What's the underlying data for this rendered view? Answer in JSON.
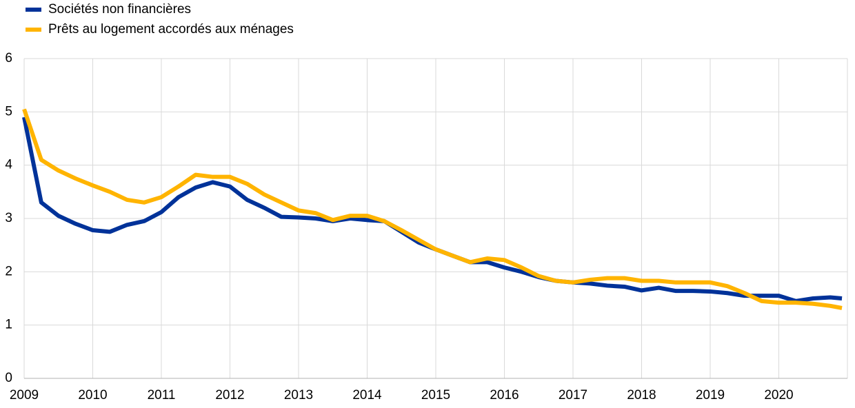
{
  "chart_data": {
    "type": "line",
    "x": [
      2009,
      2009.25,
      2009.5,
      2009.75,
      2010,
      2010.25,
      2010.5,
      2010.75,
      2011,
      2011.25,
      2011.5,
      2011.75,
      2012,
      2012.25,
      2012.5,
      2012.75,
      2013,
      2013.25,
      2013.5,
      2013.75,
      2014,
      2014.25,
      2014.5,
      2014.75,
      2015,
      2015.25,
      2015.5,
      2015.75,
      2016,
      2016.25,
      2016.5,
      2016.75,
      2017,
      2017.25,
      2017.5,
      2017.75,
      2018,
      2018.25,
      2018.5,
      2018.75,
      2019,
      2019.25,
      2019.5,
      2019.75,
      2020,
      2020.25,
      2020.5,
      2020.75,
      2020.92
    ],
    "series": [
      {
        "name": "Sociétés non financières",
        "color": "#003299",
        "values": [
          4.9,
          3.3,
          3.05,
          2.9,
          2.78,
          2.75,
          2.88,
          2.95,
          3.12,
          3.4,
          3.58,
          3.68,
          3.6,
          3.35,
          3.2,
          3.03,
          3.02,
          3.0,
          2.95,
          3.0,
          2.97,
          2.95,
          2.75,
          2.55,
          2.42,
          2.3,
          2.18,
          2.18,
          2.08,
          2.0,
          1.9,
          1.83,
          1.8,
          1.78,
          1.74,
          1.72,
          1.65,
          1.7,
          1.64,
          1.64,
          1.63,
          1.6,
          1.55,
          1.55,
          1.55,
          1.45,
          1.5,
          1.52,
          1.5
        ]
      },
      {
        "name": "Prêts au logement accordés aux ménages",
        "color": "#ffb400",
        "values": [
          5.05,
          4.1,
          3.9,
          3.75,
          3.62,
          3.5,
          3.35,
          3.3,
          3.4,
          3.6,
          3.82,
          3.78,
          3.78,
          3.65,
          3.45,
          3.3,
          3.15,
          3.1,
          2.97,
          3.05,
          3.05,
          2.95,
          2.78,
          2.6,
          2.42,
          2.3,
          2.18,
          2.25,
          2.22,
          2.08,
          1.92,
          1.83,
          1.8,
          1.85,
          1.88,
          1.88,
          1.83,
          1.83,
          1.8,
          1.8,
          1.8,
          1.73,
          1.6,
          1.45,
          1.42,
          1.42,
          1.4,
          1.36,
          1.32
        ]
      }
    ],
    "xlim": [
      2009,
      2021
    ],
    "xticks": [
      2009,
      2010,
      2011,
      2012,
      2013,
      2014,
      2015,
      2016,
      2017,
      2018,
      2019,
      2020
    ],
    "ylim": [
      0,
      6
    ],
    "yticks": [
      0,
      1,
      2,
      3,
      4,
      5,
      6
    ],
    "grid": true,
    "legend": "top-left"
  }
}
